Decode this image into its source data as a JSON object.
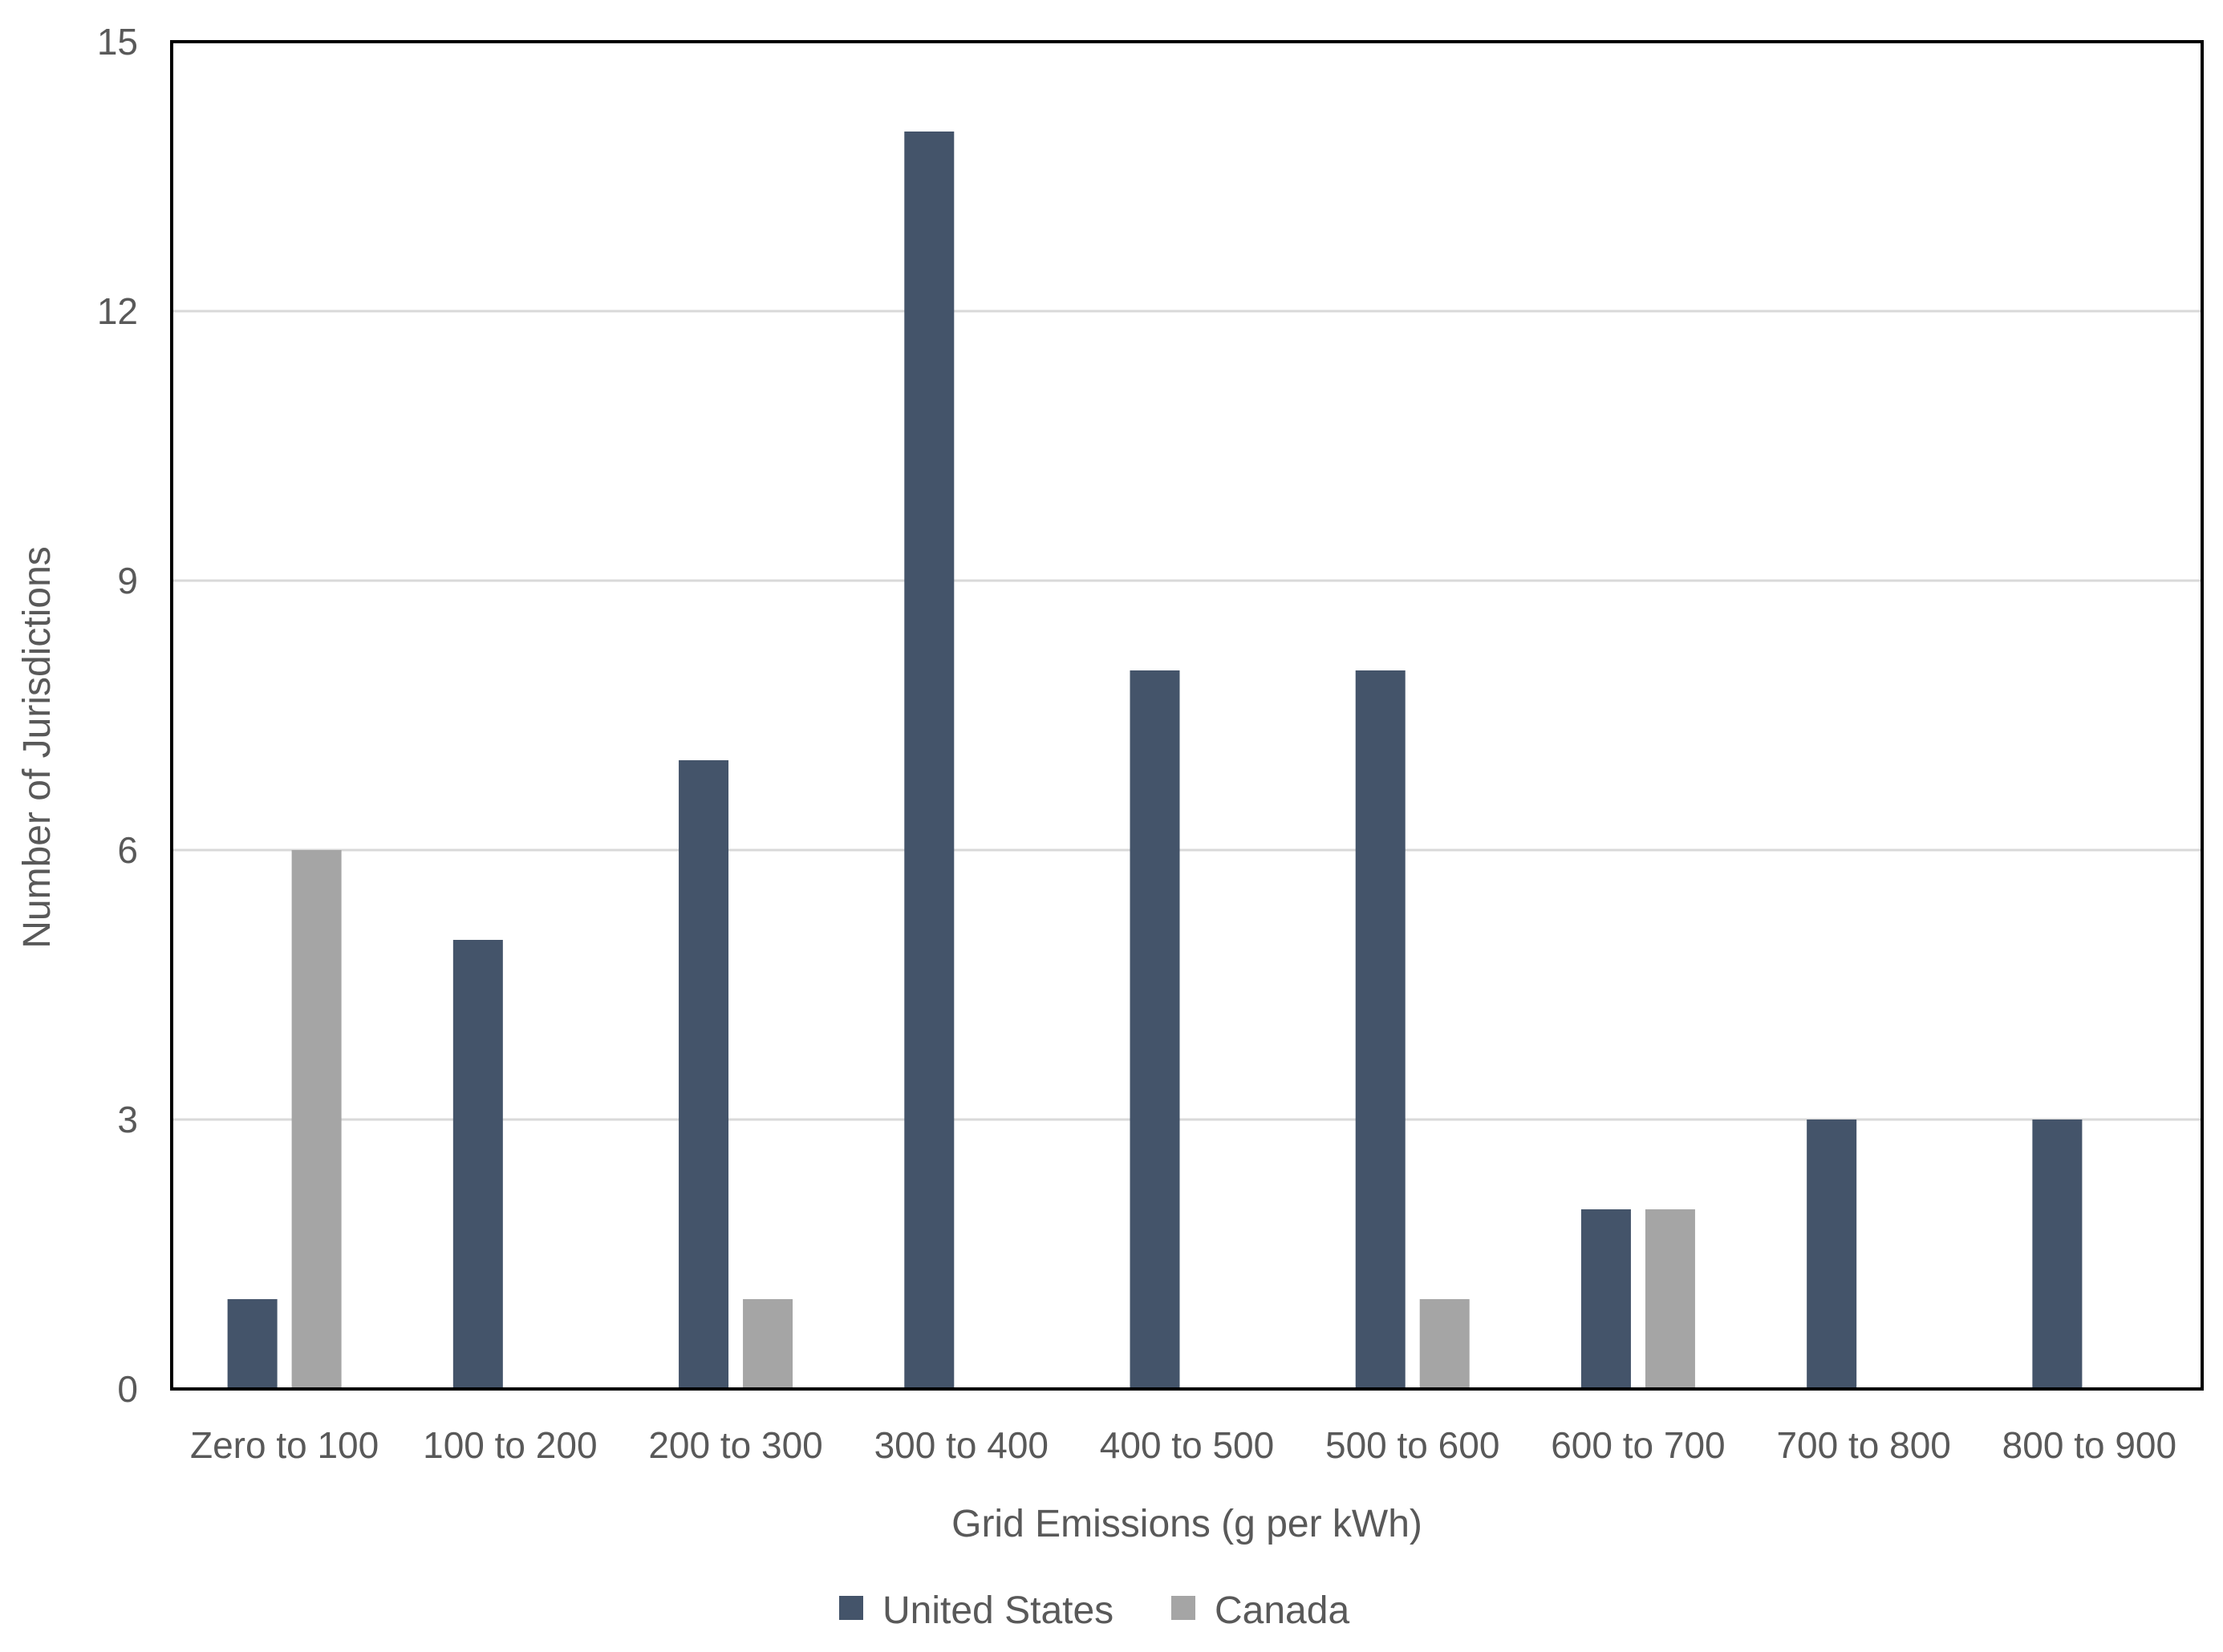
{
  "chart_data": {
    "type": "bar",
    "xlabel": "Grid Emissions (g per kWh)",
    "ylabel": "Number of Jurisdictions",
    "ylim": [
      0,
      15
    ],
    "yticks": [
      0,
      3,
      6,
      9,
      12,
      15
    ],
    "grid": "horizontal",
    "legend": "bottom",
    "categories": [
      "Zero to 100",
      "100 to 200",
      "200 to 300",
      "300 to 400",
      "400 to 500",
      "500 to 600",
      "600 to 700",
      "700 to 800",
      "800 to 900"
    ],
    "series": [
      {
        "name": "United States",
        "color": "#44546a",
        "values": [
          1,
          5,
          7,
          14,
          8,
          8,
          2,
          3,
          3
        ]
      },
      {
        "name": "Canada",
        "color": "#a5a5a5",
        "values": [
          6,
          0,
          1,
          0,
          0,
          1,
          2,
          0,
          0
        ]
      }
    ]
  }
}
